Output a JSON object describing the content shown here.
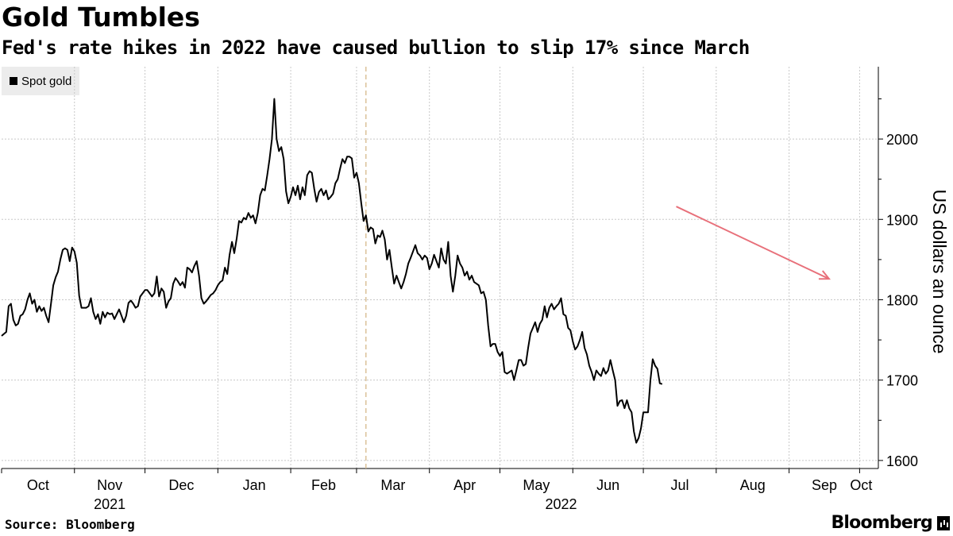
{
  "chart_data": {
    "type": "line",
    "title": "Gold Tumbles",
    "subtitle": "Fed's rate hikes in 2022 have caused bullion to slip 17% since March",
    "ylabel": "US dollars an ounce",
    "ylim": [
      1590,
      2090
    ],
    "yticks": [
      1600,
      1700,
      1800,
      1900,
      2000
    ],
    "x_range": [
      0,
      378
    ],
    "months": [
      {
        "label": "Oct",
        "day": 0
      },
      {
        "label": "Nov",
        "day": 31
      },
      {
        "label": "Dec",
        "day": 61
      },
      {
        "label": "Jan",
        "day": 92
      },
      {
        "label": "Feb",
        "day": 123
      },
      {
        "label": "Mar",
        "day": 151
      },
      {
        "label": "Apr",
        "day": 182
      },
      {
        "label": "May",
        "day": 212
      },
      {
        "label": "Jun",
        "day": 243
      },
      {
        "label": "Jul",
        "day": 273
      },
      {
        "label": "Aug",
        "day": 304
      },
      {
        "label": "Sep",
        "day": 335
      },
      {
        "label": "Oct",
        "day": 365
      }
    ],
    "years": [
      {
        "label": "2021",
        "day": 46
      },
      {
        "label": "2022",
        "day": 238
      }
    ],
    "marker_line_day": 155,
    "legend": [
      "Spot gold"
    ],
    "arrow": {
      "from": {
        "day": 287,
        "value": 1916
      },
      "to": {
        "day": 352,
        "value": 1826
      }
    },
    "series": [
      {
        "name": "Spot gold",
        "points": [
          [
            0,
            1755
          ],
          [
            2,
            1760
          ],
          [
            3,
            1792
          ],
          [
            4,
            1795
          ],
          [
            5,
            1775
          ],
          [
            6,
            1768
          ],
          [
            7,
            1770
          ],
          [
            8,
            1780
          ],
          [
            9,
            1782
          ],
          [
            10,
            1788
          ],
          [
            11,
            1800
          ],
          [
            12,
            1808
          ],
          [
            13,
            1795
          ],
          [
            14,
            1800
          ],
          [
            15,
            1785
          ],
          [
            16,
            1792
          ],
          [
            17,
            1786
          ],
          [
            18,
            1790
          ],
          [
            19,
            1780
          ],
          [
            20,
            1772
          ],
          [
            21,
            1795
          ],
          [
            22,
            1818
          ],
          [
            23,
            1828
          ],
          [
            24,
            1835
          ],
          [
            25,
            1850
          ],
          [
            26,
            1862
          ],
          [
            27,
            1864
          ],
          [
            28,
            1862
          ],
          [
            29,
            1848
          ],
          [
            30,
            1865
          ],
          [
            31,
            1860
          ],
          [
            32,
            1846
          ],
          [
            33,
            1805
          ],
          [
            34,
            1790
          ],
          [
            35,
            1790
          ],
          [
            36,
            1790
          ],
          [
            37,
            1792
          ],
          [
            38,
            1802
          ],
          [
            39,
            1785
          ],
          [
            40,
            1776
          ],
          [
            41,
            1782
          ],
          [
            42,
            1770
          ],
          [
            43,
            1785
          ],
          [
            44,
            1778
          ],
          [
            45,
            1784
          ],
          [
            46,
            1782
          ],
          [
            47,
            1783
          ],
          [
            48,
            1776
          ],
          [
            49,
            1782
          ],
          [
            50,
            1788
          ],
          [
            51,
            1780
          ],
          [
            52,
            1772
          ],
          [
            53,
            1780
          ],
          [
            54,
            1796
          ],
          [
            55,
            1799
          ],
          [
            56,
            1795
          ],
          [
            57,
            1790
          ],
          [
            58,
            1792
          ],
          [
            59,
            1804
          ],
          [
            60,
            1808
          ],
          [
            61,
            1812
          ],
          [
            62,
            1812
          ],
          [
            63,
            1808
          ],
          [
            64,
            1804
          ],
          [
            65,
            1808
          ],
          [
            66,
            1829
          ],
          [
            67,
            1804
          ],
          [
            68,
            1814
          ],
          [
            69,
            1810
          ],
          [
            70,
            1790
          ],
          [
            71,
            1798
          ],
          [
            72,
            1802
          ],
          [
            73,
            1820
          ],
          [
            74,
            1827
          ],
          [
            75,
            1823
          ],
          [
            76,
            1818
          ],
          [
            77,
            1822
          ],
          [
            78,
            1815
          ],
          [
            79,
            1840
          ],
          [
            80,
            1838
          ],
          [
            81,
            1834
          ],
          [
            82,
            1842
          ],
          [
            83,
            1848
          ],
          [
            84,
            1830
          ],
          [
            85,
            1802
          ],
          [
            86,
            1795
          ],
          [
            87,
            1798
          ],
          [
            88,
            1802
          ],
          [
            89,
            1806
          ],
          [
            90,
            1808
          ],
          [
            91,
            1812
          ],
          [
            92,
            1818
          ],
          [
            93,
            1822
          ],
          [
            94,
            1824
          ],
          [
            95,
            1840
          ],
          [
            96,
            1832
          ],
          [
            97,
            1856
          ],
          [
            98,
            1872
          ],
          [
            99,
            1858
          ],
          [
            100,
            1876
          ],
          [
            101,
            1898
          ],
          [
            102,
            1896
          ],
          [
            103,
            1902
          ],
          [
            104,
            1900
          ],
          [
            105,
            1908
          ],
          [
            106,
            1902
          ],
          [
            107,
            1905
          ],
          [
            108,
            1895
          ],
          [
            109,
            1908
          ],
          [
            110,
            1930
          ],
          [
            111,
            1938
          ],
          [
            112,
            1936
          ],
          [
            113,
            1955
          ],
          [
            114,
            1975
          ],
          [
            115,
            2000
          ],
          [
            116,
            2050
          ],
          [
            117,
            2000
          ],
          [
            118,
            1985
          ],
          [
            119,
            1990
          ],
          [
            120,
            1975
          ],
          [
            121,
            1935
          ],
          [
            122,
            1920
          ],
          [
            123,
            1928
          ],
          [
            124,
            1940
          ],
          [
            125,
            1930
          ],
          [
            126,
            1942
          ],
          [
            127,
            1925
          ],
          [
            128,
            1940
          ],
          [
            129,
            1930
          ],
          [
            130,
            1955
          ],
          [
            131,
            1960
          ],
          [
            132,
            1958
          ],
          [
            133,
            1938
          ],
          [
            134,
            1922
          ],
          [
            135,
            1934
          ],
          [
            136,
            1938
          ],
          [
            137,
            1930
          ],
          [
            138,
            1936
          ],
          [
            139,
            1925
          ],
          [
            140,
            1928
          ],
          [
            141,
            1932
          ],
          [
            142,
            1945
          ],
          [
            143,
            1950
          ],
          [
            144,
            1963
          ],
          [
            145,
            1975
          ],
          [
            146,
            1970
          ],
          [
            147,
            1978
          ],
          [
            148,
            1978
          ],
          [
            149,
            1976
          ],
          [
            150,
            1952
          ],
          [
            151,
            1958
          ],
          [
            152,
            1945
          ],
          [
            153,
            1920
          ],
          [
            154,
            1898
          ],
          [
            155,
            1905
          ],
          [
            156,
            1885
          ],
          [
            157,
            1890
          ],
          [
            158,
            1888
          ],
          [
            159,
            1870
          ],
          [
            160,
            1880
          ],
          [
            161,
            1878
          ],
          [
            162,
            1886
          ],
          [
            163,
            1875
          ],
          [
            164,
            1850
          ],
          [
            165,
            1862
          ],
          [
            166,
            1840
          ],
          [
            167,
            1820
          ],
          [
            168,
            1830
          ],
          [
            169,
            1822
          ],
          [
            170,
            1814
          ],
          [
            171,
            1822
          ],
          [
            172,
            1832
          ],
          [
            173,
            1845
          ],
          [
            174,
            1852
          ],
          [
            175,
            1860
          ],
          [
            176,
            1868
          ],
          [
            177,
            1858
          ],
          [
            178,
            1855
          ],
          [
            179,
            1850
          ],
          [
            180,
            1855
          ],
          [
            181,
            1852
          ],
          [
            182,
            1838
          ],
          [
            183,
            1845
          ],
          [
            184,
            1856
          ],
          [
            185,
            1848
          ],
          [
            186,
            1840
          ],
          [
            187,
            1864
          ],
          [
            188,
            1850
          ],
          [
            189,
            1845
          ],
          [
            190,
            1872
          ],
          [
            191,
            1830
          ],
          [
            192,
            1810
          ],
          [
            193,
            1830
          ],
          [
            194,
            1855
          ],
          [
            195,
            1845
          ],
          [
            196,
            1840
          ],
          [
            197,
            1830
          ],
          [
            198,
            1835
          ],
          [
            199,
            1825
          ],
          [
            200,
            1830
          ],
          [
            201,
            1822
          ],
          [
            202,
            1820
          ],
          [
            203,
            1818
          ],
          [
            204,
            1808
          ],
          [
            205,
            1810
          ],
          [
            206,
            1800
          ],
          [
            207,
            1768
          ],
          [
            208,
            1742
          ],
          [
            209,
            1745
          ],
          [
            210,
            1745
          ],
          [
            211,
            1735
          ],
          [
            212,
            1730
          ],
          [
            213,
            1735
          ],
          [
            214,
            1710
          ],
          [
            215,
            1708
          ],
          [
            216,
            1710
          ],
          [
            217,
            1712
          ],
          [
            218,
            1700
          ],
          [
            219,
            1712
          ],
          [
            220,
            1725
          ],
          [
            221,
            1725
          ],
          [
            222,
            1718
          ],
          [
            223,
            1720
          ],
          [
            224,
            1740
          ],
          [
            225,
            1758
          ],
          [
            226,
            1765
          ],
          [
            227,
            1772
          ],
          [
            228,
            1760
          ],
          [
            229,
            1770
          ],
          [
            230,
            1775
          ],
          [
            231,
            1792
          ],
          [
            232,
            1778
          ],
          [
            233,
            1790
          ],
          [
            234,
            1795
          ],
          [
            235,
            1788
          ],
          [
            236,
            1792
          ],
          [
            237,
            1795
          ],
          [
            238,
            1802
          ],
          [
            239,
            1782
          ],
          [
            240,
            1780
          ],
          [
            241,
            1765
          ],
          [
            242,
            1762
          ],
          [
            243,
            1748
          ],
          [
            244,
            1738
          ],
          [
            245,
            1742
          ],
          [
            246,
            1750
          ],
          [
            247,
            1760
          ],
          [
            248,
            1740
          ],
          [
            249,
            1732
          ],
          [
            250,
            1718
          ],
          [
            251,
            1710
          ],
          [
            252,
            1700
          ],
          [
            253,
            1712
          ],
          [
            254,
            1708
          ],
          [
            255,
            1705
          ],
          [
            256,
            1715
          ],
          [
            257,
            1708
          ],
          [
            258,
            1712
          ],
          [
            259,
            1725
          ],
          [
            260,
            1712
          ],
          [
            261,
            1700
          ],
          [
            262,
            1668
          ],
          [
            263,
            1674
          ],
          [
            264,
            1675
          ],
          [
            265,
            1665
          ],
          [
            266,
            1675
          ],
          [
            267,
            1665
          ],
          [
            268,
            1660
          ],
          [
            269,
            1636
          ],
          [
            270,
            1622
          ],
          [
            271,
            1628
          ],
          [
            272,
            1640
          ],
          [
            273,
            1660
          ],
          [
            274,
            1660
          ],
          [
            275,
            1660
          ],
          [
            276,
            1700
          ],
          [
            277,
            1726
          ],
          [
            278,
            1718
          ],
          [
            279,
            1714
          ],
          [
            280,
            1696
          ],
          [
            281,
            1695
          ]
        ]
      }
    ]
  },
  "footer": {
    "source": "Source: Bloomberg",
    "brand": "Bloomberg"
  }
}
